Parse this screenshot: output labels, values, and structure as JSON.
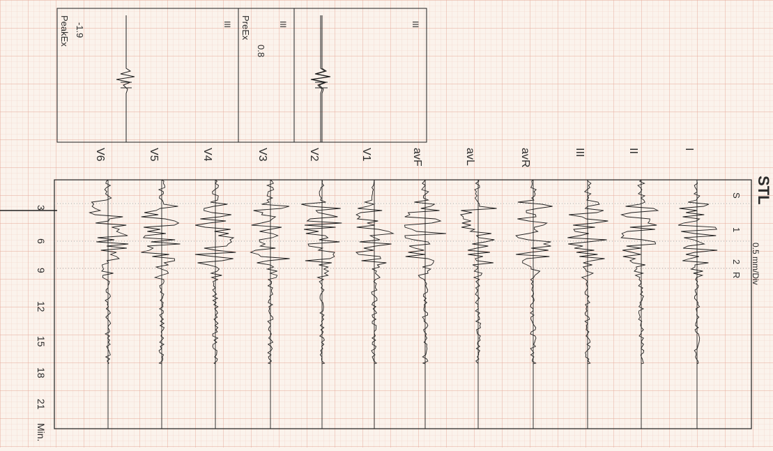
{
  "title": "STL",
  "scale_label": "0.5 mm/Div",
  "time_axis": {
    "ticks": [
      "3",
      "6",
      "9",
      "12",
      "15",
      "18",
      "21",
      "Min."
    ],
    "tick_minutes": [
      3,
      6,
      9,
      12,
      15,
      18,
      21
    ]
  },
  "stage_markers": [
    "S",
    "1",
    "2",
    "R"
  ],
  "leads": [
    "I",
    "II",
    "III",
    "avR",
    "avL",
    "avF",
    "V1",
    "V2",
    "V3",
    "V4",
    "V5",
    "V6"
  ],
  "insets": [
    {
      "lead": "III",
      "label": "",
      "value": ""
    },
    {
      "lead": "III",
      "label": "PreEx",
      "value": "0.8"
    },
    {
      "lead": "III",
      "label": "PeakEx",
      "value": "-1.9"
    }
  ],
  "colors": {
    "paper": "#fbf3ec",
    "grid_minor": "#f1cfc4",
    "grid_major": "#e6a899",
    "trace": "#1e1e1e"
  },
  "chart_data": {
    "type": "line",
    "title": "STL",
    "xlabel": "Min.",
    "ylabel": "0.5 mm/Div",
    "xlim": [
      0,
      23
    ],
    "series": [
      {
        "name": "I",
        "values": []
      },
      {
        "name": "II",
        "values": []
      },
      {
        "name": "III",
        "values": []
      },
      {
        "name": "avR",
        "values": []
      },
      {
        "name": "avL",
        "values": []
      },
      {
        "name": "avF",
        "values": []
      },
      {
        "name": "V1",
        "values": []
      },
      {
        "name": "V2",
        "values": []
      },
      {
        "name": "V3",
        "values": []
      },
      {
        "name": "V4",
        "values": []
      },
      {
        "name": "V5",
        "values": []
      },
      {
        "name": "V6",
        "values": []
      }
    ]
  }
}
